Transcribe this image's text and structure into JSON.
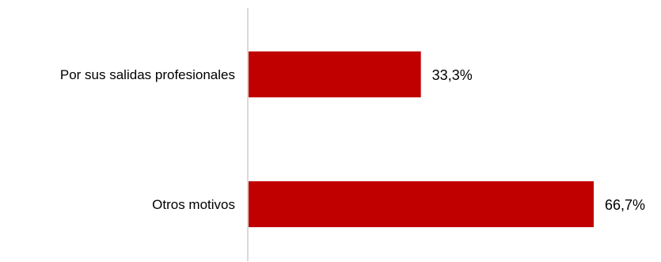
{
  "chart_data": {
    "type": "bar",
    "orientation": "horizontal",
    "categories": [
      "Por sus salidas profesionales",
      "Otros motivos"
    ],
    "values": [
      33.3,
      66.7
    ],
    "value_labels": [
      "33,3%",
      "66,7%"
    ],
    "xlim": [
      0,
      66.7
    ],
    "title": "",
    "xlabel": "",
    "ylabel": "",
    "grid": false,
    "legend": "none",
    "bar_color": "#C00000",
    "axis_color": "#D9D9D9"
  }
}
